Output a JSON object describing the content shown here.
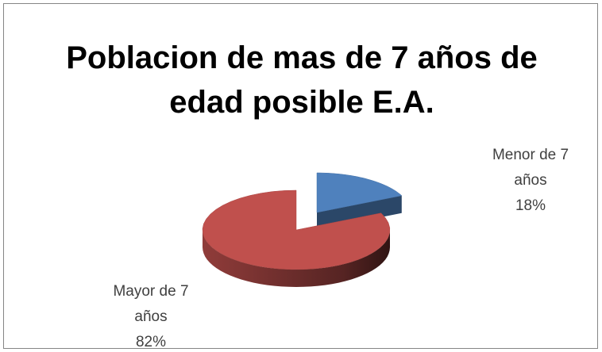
{
  "chart_data": {
    "type": "pie",
    "title": "Poblacion de mas de 7 años de edad posible E.A.",
    "categories": [
      "Menor de 7 años",
      "Mayor de 7 años"
    ],
    "values": [
      18,
      82
    ],
    "value_labels": [
      "18%",
      "82%"
    ],
    "colors": [
      "#4f81bd",
      "#c0504d"
    ]
  }
}
